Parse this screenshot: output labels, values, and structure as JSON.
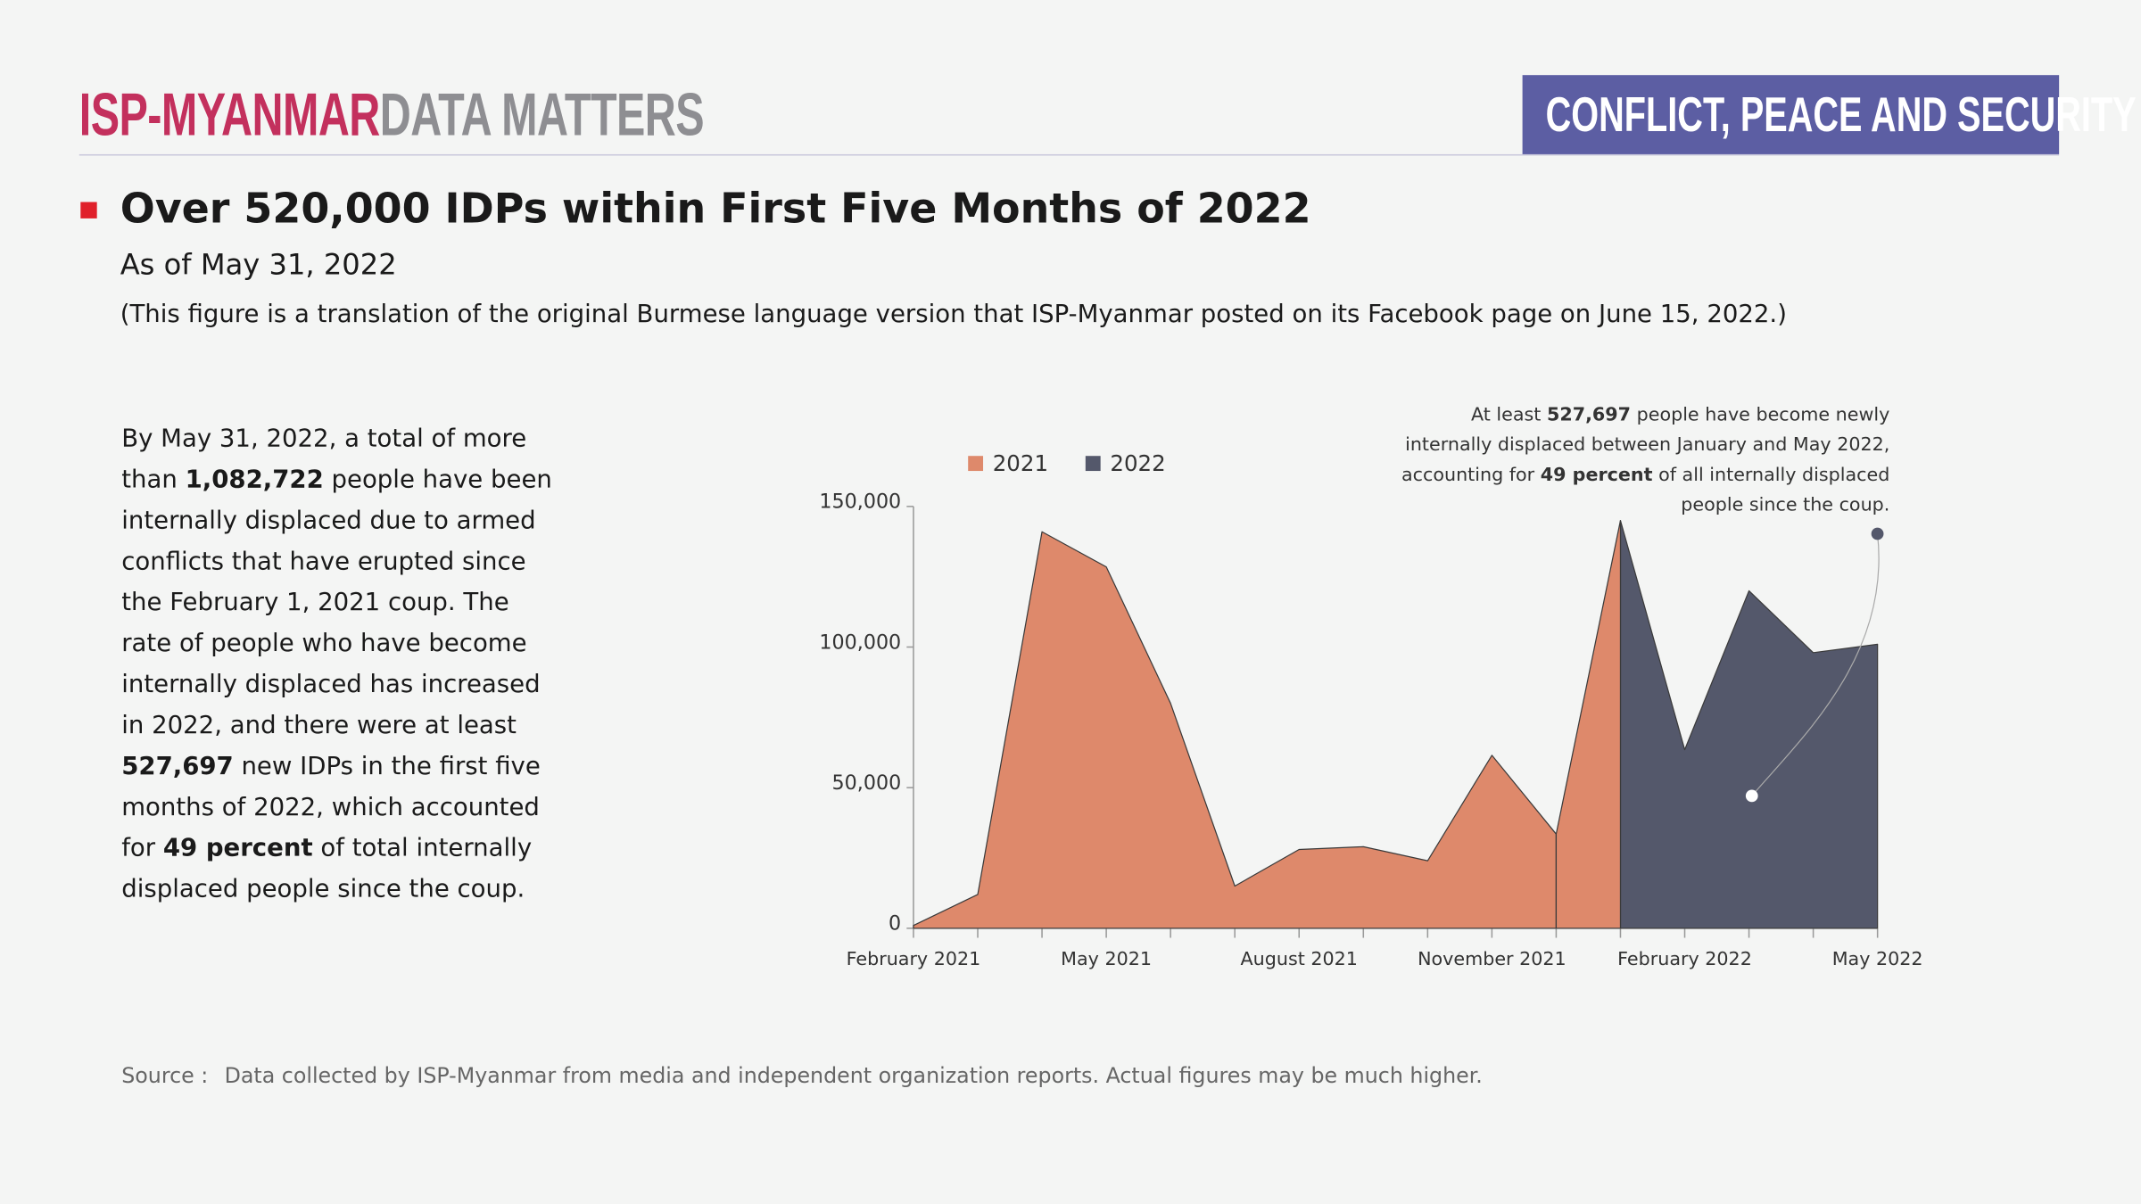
{
  "header": {
    "brand": "ISP-MYANMAR",
    "brand_suffix": "DATA MATTERS",
    "tag": "CONFLICT, PEACE AND SECURITY"
  },
  "title": "Over 520,000 IDPs within First Five Months of 2022",
  "subtitle": "As of May 31, 2022",
  "note": "(This figure is a translation of the original Burmese language version that ISP-Myanmar posted on its Facebook page on June 15, 2022.)",
  "body": [
    {
      "text": "By May 31, 2022, a total of more than ",
      "bold": false
    },
    {
      "text": "1,082,722",
      "bold": true
    },
    {
      "text": " people have been internally displaced due to armed conflicts that have erupted since the February 1, 2021 coup. The rate of people who have become internally displaced has increased in 2022, and there were at least ",
      "bold": false
    },
    {
      "text": "527,697",
      "bold": true
    },
    {
      "text": " new IDPs in the first five months of 2022, which accounted for ",
      "bold": false
    },
    {
      "text": "49 percent",
      "bold": true
    },
    {
      "text": " of total internally displaced people since the coup.",
      "bold": false
    }
  ],
  "source": {
    "label": "Source :",
    "text": "Data collected by ISP-Myanmar from media and independent organization reports. Actual figures may be much higher."
  },
  "chart_data": {
    "type": "area",
    "categories": [
      "February 2021",
      null,
      null,
      "May 2021",
      null,
      null,
      "August 2021",
      null,
      null,
      "November 2021",
      null,
      null,
      "February 2022",
      null,
      null,
      "May 2022"
    ],
    "series": [
      {
        "name": "2021",
        "color": "#de896b",
        "values": [
          1000,
          12000,
          141000,
          128500,
          80000,
          15000,
          28000,
          29000,
          24000,
          61500,
          33500,
          null,
          null,
          null,
          null,
          null
        ]
      },
      {
        "name": "2022",
        "color": "#54586b",
        "values": [
          null,
          null,
          null,
          null,
          null,
          null,
          null,
          null,
          null,
          null,
          null,
          145000,
          63500,
          120000,
          98000,
          101000
        ]
      }
    ],
    "ylim": [
      0,
      150000
    ],
    "yticks": [
      {
        "value": 0,
        "label": "0"
      },
      {
        "value": 50000,
        "label": "50,000"
      },
      {
        "value": 100000,
        "label": "100,000"
      },
      {
        "value": 150000,
        "label": "150,000"
      }
    ],
    "annotation": [
      [
        {
          "text": "At least ",
          "bold": false
        },
        {
          "text": "527,697",
          "bold": true
        },
        {
          "text": " people have become newly",
          "bold": false
        }
      ],
      [
        {
          "text": "internally displaced between January and May 2022,",
          "bold": false
        }
      ],
      [
        {
          "text": "accounting for ",
          "bold": false
        },
        {
          "text": "49 percent",
          "bold": true
        },
        {
          "text": " of all internally displaced",
          "bold": false
        }
      ],
      [
        {
          "text": "people since the coup.",
          "bold": false
        }
      ]
    ]
  }
}
